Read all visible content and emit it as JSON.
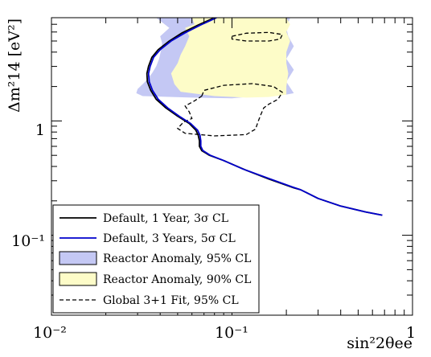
{
  "chart_data": {
    "type": "line",
    "xlabel": "sin²2θee",
    "ylabel": "Δm²14 [eV²]",
    "xscale": "log",
    "yscale": "log",
    "xlim": [
      0.01,
      1
    ],
    "ylim": [
      0.02,
      8
    ],
    "x_tick_labels": [
      "10⁻²",
      "10⁻¹",
      "1"
    ],
    "y_tick_labels": [
      "10⁻¹",
      "1"
    ],
    "grid": false,
    "legend_position": "bottom-left",
    "legend": [
      {
        "label": "Default, 1 Year, 3σ CL",
        "style": "line",
        "color": "#000000"
      },
      {
        "label": "Default, 3 Years, 5σ CL",
        "style": "line",
        "color": "#0000cc"
      },
      {
        "label": "Reactor Anomaly, 95% CL",
        "style": "fill",
        "color": "#c4c8f4"
      },
      {
        "label": "Reactor Anomaly, 90% CL",
        "style": "fill",
        "color": "#fdfcc8"
      },
      {
        "label": "Global 3+1 Fit,  95% CL",
        "style": "dashed",
        "color": "#000000"
      }
    ],
    "series": [
      {
        "id": "default-1yr",
        "color": "#000000",
        "points": [
          [
            0.08,
            8
          ],
          [
            0.065,
            6.9
          ],
          [
            0.053,
            5.9
          ],
          [
            0.045,
            5.0
          ],
          [
            0.039,
            4.2
          ],
          [
            0.036,
            3.6
          ],
          [
            0.0345,
            3.0
          ],
          [
            0.0338,
            2.6
          ],
          [
            0.034,
            2.2
          ],
          [
            0.0355,
            1.85
          ],
          [
            0.038,
            1.55
          ],
          [
            0.043,
            1.3
          ],
          [
            0.05,
            1.1
          ],
          [
            0.058,
            0.95
          ],
          [
            0.063,
            0.83
          ],
          [
            0.065,
            0.75
          ],
          [
            0.066,
            0.67
          ],
          [
            0.066,
            0.6
          ],
          [
            0.068,
            0.55
          ],
          [
            0.075,
            0.5
          ],
          [
            0.09,
            0.45
          ],
          [
            0.12,
            0.37
          ],
          [
            0.16,
            0.31
          ],
          [
            0.22,
            0.26
          ],
          [
            0.24,
            0.25
          ],
          [
            0.3,
            0.21
          ],
          [
            0.4,
            0.18
          ],
          [
            0.55,
            0.16
          ],
          [
            0.68,
            0.15
          ]
        ]
      },
      {
        "id": "default-3yr",
        "color": "#0000cc",
        "points": [
          [
            0.082,
            8
          ],
          [
            0.067,
            6.9
          ],
          [
            0.055,
            5.9
          ],
          [
            0.046,
            5.0
          ],
          [
            0.04,
            4.2
          ],
          [
            0.0368,
            3.6
          ],
          [
            0.0352,
            3.0
          ],
          [
            0.0345,
            2.6
          ],
          [
            0.0348,
            2.2
          ],
          [
            0.0363,
            1.85
          ],
          [
            0.039,
            1.55
          ],
          [
            0.044,
            1.3
          ],
          [
            0.051,
            1.1
          ],
          [
            0.059,
            0.95
          ],
          [
            0.0645,
            0.83
          ],
          [
            0.0665,
            0.75
          ],
          [
            0.0672,
            0.67
          ],
          [
            0.0672,
            0.6
          ],
          [
            0.069,
            0.55
          ],
          [
            0.076,
            0.5
          ],
          [
            0.09,
            0.45
          ],
          [
            0.115,
            0.38
          ],
          [
            0.155,
            0.32
          ],
          [
            0.215,
            0.265
          ],
          [
            0.24,
            0.25
          ],
          [
            0.3,
            0.21
          ],
          [
            0.4,
            0.18
          ],
          [
            0.55,
            0.16
          ],
          [
            0.68,
            0.15
          ]
        ]
      }
    ],
    "regions": [
      {
        "id": "reactor-95",
        "color": "#c4c8f4",
        "polygon": [
          [
            0.038,
            8
          ],
          [
            0.045,
            6.5
          ],
          [
            0.04,
            5.5
          ],
          [
            0.041,
            4.8
          ],
          [
            0.0405,
            4.2
          ],
          [
            0.0395,
            3.5
          ],
          [
            0.038,
            3.0
          ],
          [
            0.036,
            2.6
          ],
          [
            0.033,
            2.2
          ],
          [
            0.03,
            1.9
          ],
          [
            0.0295,
            1.75
          ],
          [
            0.032,
            1.65
          ],
          [
            0.06,
            1.6
          ],
          [
            0.1,
            1.58
          ],
          [
            0.12,
            1.62
          ],
          [
            0.15,
            1.65
          ],
          [
            0.2,
            1.7
          ],
          [
            0.22,
            1.75
          ],
          [
            0.2,
            2.2
          ],
          [
            0.22,
            2.8
          ],
          [
            0.2,
            3.5
          ],
          [
            0.22,
            4.5
          ],
          [
            0.205,
            5.5
          ],
          [
            0.2,
            6.5
          ],
          [
            0.21,
            8
          ]
        ]
      },
      {
        "id": "reactor-90",
        "color": "#fdfcc8",
        "polygon": [
          [
            0.06,
            8
          ],
          [
            0.062,
            7
          ],
          [
            0.055,
            6.5
          ],
          [
            0.058,
            5.5
          ],
          [
            0.055,
            4.5
          ],
          [
            0.052,
            3.8
          ],
          [
            0.05,
            3.2
          ],
          [
            0.046,
            2.6
          ],
          [
            0.048,
            2.1
          ],
          [
            0.052,
            1.8
          ],
          [
            0.08,
            1.65
          ],
          [
            0.12,
            1.6
          ],
          [
            0.16,
            1.62
          ],
          [
            0.2,
            1.7
          ],
          [
            0.2,
            2.0
          ],
          [
            0.205,
            2.6
          ],
          [
            0.2,
            3.2
          ],
          [
            0.2,
            4.0
          ],
          [
            0.21,
            5.0
          ],
          [
            0.2,
            6.0
          ],
          [
            0.21,
            7.0
          ],
          [
            0.2,
            8
          ]
        ]
      }
    ],
    "contours": [
      {
        "id": "global-fit-upper",
        "points": [
          [
            0.1,
            5.5
          ],
          [
            0.12,
            5.85
          ],
          [
            0.16,
            5.95
          ],
          [
            0.19,
            5.7
          ],
          [
            0.185,
            5.2
          ],
          [
            0.16,
            5.0
          ],
          [
            0.12,
            5.0
          ],
          [
            0.1,
            5.2
          ],
          [
            0.1,
            5.5
          ]
        ]
      },
      {
        "id": "global-fit-lower",
        "points": [
          [
            0.068,
            1.65
          ],
          [
            0.07,
            1.85
          ],
          [
            0.09,
            2.05
          ],
          [
            0.13,
            2.12
          ],
          [
            0.17,
            2.0
          ],
          [
            0.19,
            1.78
          ],
          [
            0.18,
            1.55
          ],
          [
            0.16,
            1.4
          ],
          [
            0.15,
            1.3
          ],
          [
            0.145,
            1.15
          ],
          [
            0.14,
            1.0
          ],
          [
            0.135,
            0.85
          ],
          [
            0.12,
            0.76
          ],
          [
            0.08,
            0.74
          ],
          [
            0.055,
            0.78
          ],
          [
            0.05,
            0.86
          ],
          [
            0.054,
            0.98
          ],
          [
            0.06,
            1.05
          ],
          [
            0.058,
            1.2
          ],
          [
            0.055,
            1.35
          ],
          [
            0.062,
            1.5
          ],
          [
            0.068,
            1.65
          ]
        ]
      }
    ]
  }
}
